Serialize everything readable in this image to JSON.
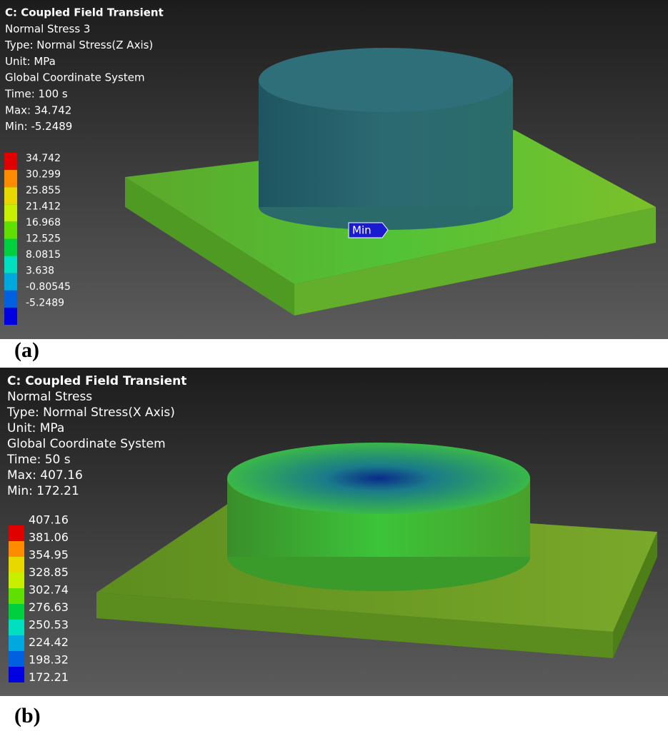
{
  "panels": [
    {
      "title": "C: Coupled Field Transient",
      "lines": [
        "Normal Stress 3",
        "Type: Normal Stress(Z Axis)",
        "Unit: MPa",
        "Global Coordinate System",
        "Time: 100 s",
        "Max: 34.742",
        "Min: -5.2489"
      ],
      "legend": [
        "34.742",
        "30.299",
        "25.855",
        "21.412",
        "16.968",
        "12.525",
        "8.0815",
        "3.638",
        "-0.80545",
        "-5.2489"
      ],
      "probe": "Min",
      "caption": "(a)"
    },
    {
      "title": "C: Coupled Field Transient",
      "lines": [
        "Normal Stress",
        "Type: Normal Stress(X Axis)",
        "Unit: MPa",
        "Global Coordinate System",
        "Time: 50 s",
        "Max: 407.16",
        "Min: 172.21"
      ],
      "legend": [
        "407.16",
        "381.06",
        "354.95",
        "328.85",
        "302.74",
        "276.63",
        "250.53",
        "224.42",
        "198.32",
        "172.21"
      ],
      "caption": "(b)"
    }
  ]
}
